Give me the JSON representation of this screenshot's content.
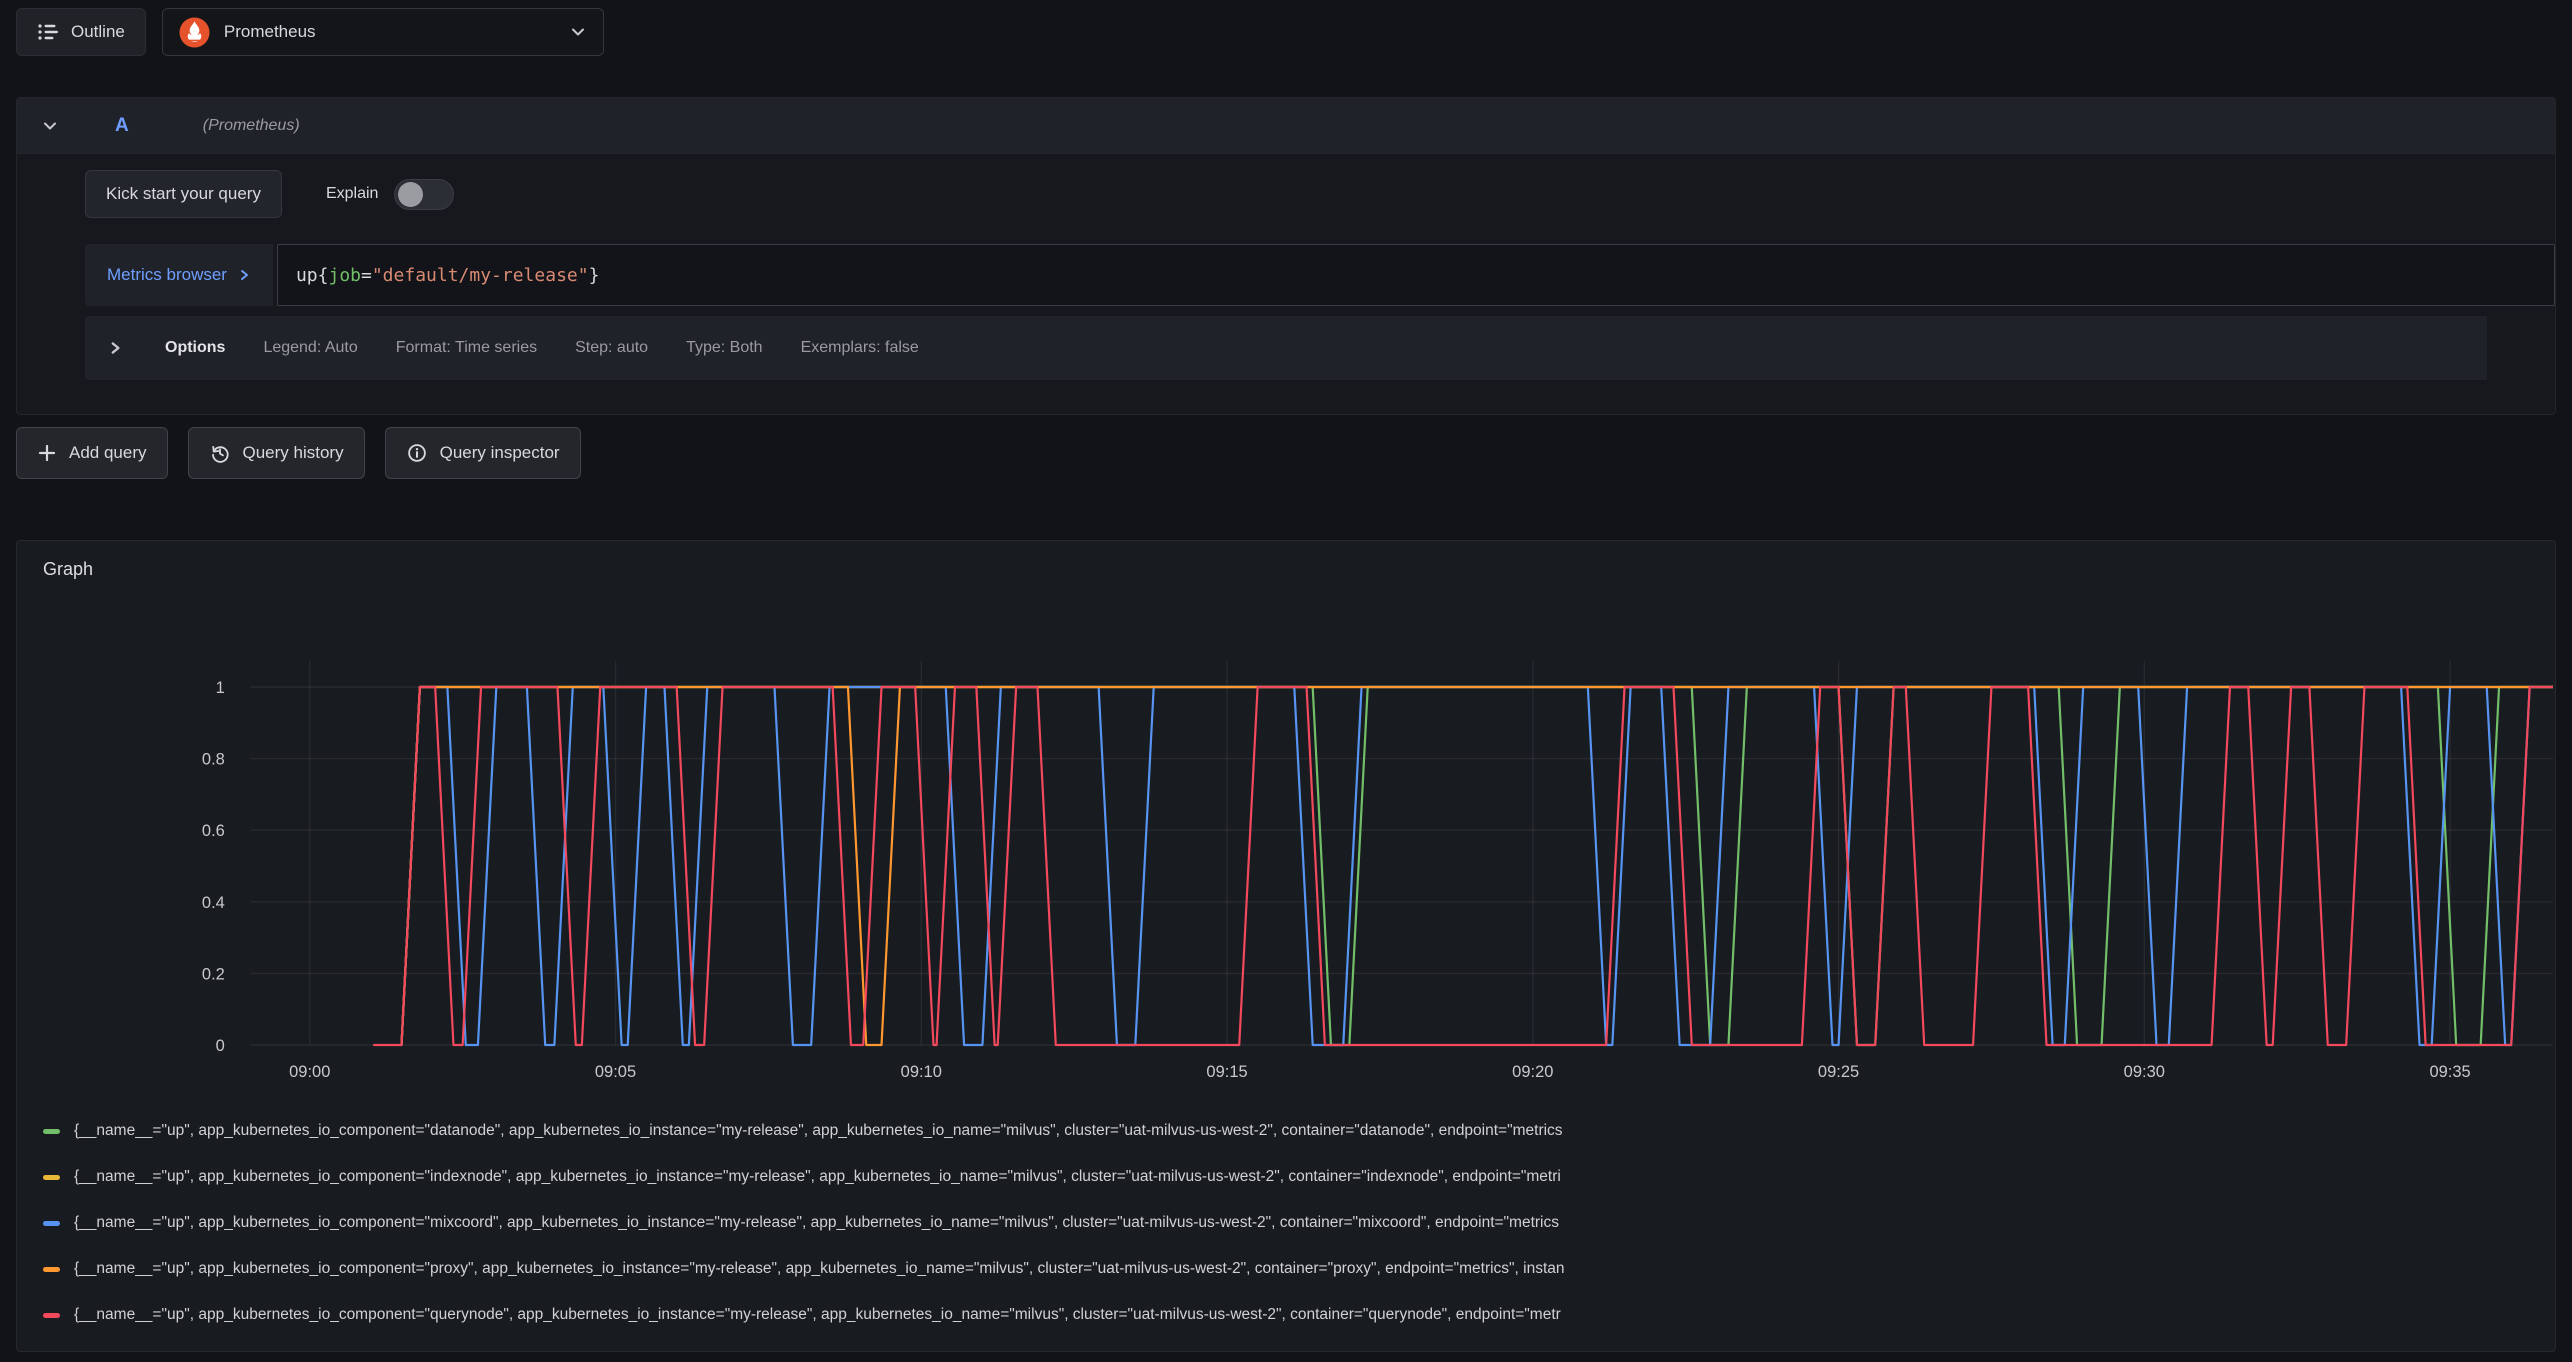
{
  "topbar": {
    "outline_label": "Outline",
    "datasource_picker": {
      "selected": "Prometheus"
    }
  },
  "query_editor": {
    "ref_id": "A",
    "datasource_hint": "(Prometheus)",
    "kick_start_label": "Kick start your query",
    "explain_label": "Explain",
    "explain_enabled": false,
    "metrics_browser_label": "Metrics browser",
    "query_text": "up{job=\"default/my-release\"}",
    "query_tokens": [
      {
        "t": "up{",
        "c": "plain"
      },
      {
        "t": "job",
        "c": "label"
      },
      {
        "t": "=",
        "c": "plain"
      },
      {
        "t": "\"default/my-release\"",
        "c": "string"
      },
      {
        "t": "}",
        "c": "plain"
      }
    ],
    "options_label": "Options",
    "options_summary": [
      "Legend: Auto",
      "Format: Time series",
      "Step: auto",
      "Type: Both",
      "Exemplars: false"
    ]
  },
  "actions": {
    "add_query": "Add query",
    "query_history": "Query history",
    "query_inspector": "Query inspector"
  },
  "graph_panel": {
    "title": "Graph"
  },
  "colors": {
    "accent_blue": "#6e9fff",
    "syntax_plain": "#d8d9da",
    "syntax_label": "#73bf69",
    "syntax_string": "#d98a73",
    "grid": "rgba(240,245,255,0.07)",
    "tick_text": "#c8c9cf"
  },
  "chart_data": {
    "type": "line",
    "title": "Graph",
    "xlabel": "",
    "ylabel": "",
    "x_unit": "time (HH:MM)",
    "x_axis": {
      "tick_labels": [
        "09:00",
        "09:05",
        "09:10",
        "09:15",
        "09:20",
        "09:25",
        "09:30",
        "09:35"
      ],
      "tick_minutes": [
        0,
        5,
        10,
        15,
        20,
        25,
        30,
        35
      ],
      "range_minutes": [
        -0.96,
        36.8
      ]
    },
    "y_axis": {
      "tick_labels": [
        "0",
        "0.2",
        "0.4",
        "0.6",
        "0.8",
        "1"
      ],
      "tick_values": [
        0,
        0.2,
        0.4,
        0.6,
        0.8,
        1
      ],
      "range": [
        0,
        1
      ]
    },
    "grid": true,
    "legend_position": "bottom",
    "note": "binary up(1)/down(0) step series, times in minutes after 09:00",
    "series": [
      {
        "name": "datanode",
        "color": "#73bf69",
        "legend_label": "{__name__=\"up\", app_kubernetes_io_component=\"datanode\", app_kubernetes_io_instance=\"my-release\", app_kubernetes_io_name=\"milvus\", cluster=\"uat-milvus-us-west-2\", container=\"datanode\", endpoint=\"metrics",
        "points": [
          [
            1.5,
            0
          ],
          [
            1.8,
            1
          ],
          [
            16.4,
            1
          ],
          [
            16.7,
            0
          ],
          [
            17.0,
            0
          ],
          [
            17.3,
            1
          ],
          [
            22.6,
            1
          ],
          [
            22.9,
            0
          ],
          [
            23.2,
            0
          ],
          [
            23.5,
            1
          ],
          [
            25.0,
            1
          ],
          [
            25.3,
            0
          ],
          [
            25.6,
            0
          ],
          [
            25.9,
            1
          ],
          [
            28.6,
            1
          ],
          [
            28.9,
            0
          ],
          [
            29.3,
            0
          ],
          [
            29.6,
            1
          ],
          [
            34.8,
            1
          ],
          [
            35.1,
            0
          ],
          [
            35.5,
            0
          ],
          [
            35.8,
            1
          ],
          [
            36.8,
            1
          ]
        ]
      },
      {
        "name": "indexnode",
        "color": "#eab839",
        "legend_label": "{__name__=\"up\", app_kubernetes_io_component=\"indexnode\", app_kubernetes_io_instance=\"my-release\", app_kubernetes_io_name=\"milvus\", cluster=\"uat-milvus-us-west-2\", container=\"indexnode\", endpoint=\"metri",
        "points": [
          [
            1.5,
            0
          ],
          [
            1.8,
            1
          ],
          [
            36.8,
            1
          ]
        ]
      },
      {
        "name": "mixcoord",
        "color": "#5794f2",
        "legend_label": "{__name__=\"up\", app_kubernetes_io_component=\"mixcoord\", app_kubernetes_io_instance=\"my-release\", app_kubernetes_io_name=\"milvus\", cluster=\"uat-milvus-us-west-2\", container=\"mixcoord\", endpoint=\"metrics",
        "points": [
          [
            1.5,
            0
          ],
          [
            1.8,
            1
          ],
          [
            2.25,
            1
          ],
          [
            2.55,
            0
          ],
          [
            2.75,
            0
          ],
          [
            3.05,
            1
          ],
          [
            3.55,
            1
          ],
          [
            3.85,
            0
          ],
          [
            4.0,
            0
          ],
          [
            4.3,
            1
          ],
          [
            4.8,
            1
          ],
          [
            5.1,
            0
          ],
          [
            5.2,
            0
          ],
          [
            5.5,
            1
          ],
          [
            5.8,
            1
          ],
          [
            6.1,
            0
          ],
          [
            6.2,
            0
          ],
          [
            6.5,
            1
          ],
          [
            7.6,
            1
          ],
          [
            7.9,
            0
          ],
          [
            8.2,
            0
          ],
          [
            8.5,
            1
          ],
          [
            10.4,
            1
          ],
          [
            10.7,
            0
          ],
          [
            11.0,
            0
          ],
          [
            11.3,
            1
          ],
          [
            12.9,
            1
          ],
          [
            13.2,
            0
          ],
          [
            13.5,
            0
          ],
          [
            13.8,
            1
          ],
          [
            16.1,
            1
          ],
          [
            16.4,
            0
          ],
          [
            16.9,
            0
          ],
          [
            17.2,
            1
          ],
          [
            20.9,
            1
          ],
          [
            21.2,
            0
          ],
          [
            21.3,
            0
          ],
          [
            21.6,
            1
          ],
          [
            22.1,
            1
          ],
          [
            22.4,
            0
          ],
          [
            22.9,
            0
          ],
          [
            23.2,
            1
          ],
          [
            24.6,
            1
          ],
          [
            24.9,
            0
          ],
          [
            25.0,
            0
          ],
          [
            25.3,
            1
          ],
          [
            28.2,
            1
          ],
          [
            28.5,
            0
          ],
          [
            28.7,
            0
          ],
          [
            29.0,
            1
          ],
          [
            29.9,
            1
          ],
          [
            30.2,
            0
          ],
          [
            30.4,
            0
          ],
          [
            30.7,
            1
          ],
          [
            34.2,
            1
          ],
          [
            34.5,
            0
          ],
          [
            34.7,
            0
          ],
          [
            35.0,
            1
          ],
          [
            35.6,
            1
          ],
          [
            35.9,
            0
          ],
          [
            36.0,
            0
          ],
          [
            36.3,
            1
          ],
          [
            36.8,
            1
          ]
        ]
      },
      {
        "name": "proxy",
        "color": "#ff9830",
        "legend_label": "{__name__=\"up\", app_kubernetes_io_component=\"proxy\", app_kubernetes_io_instance=\"my-release\", app_kubernetes_io_name=\"milvus\", cluster=\"uat-milvus-us-west-2\", container=\"proxy\", endpoint=\"metrics\", instan",
        "points": [
          [
            1.5,
            0
          ],
          [
            1.8,
            1
          ],
          [
            8.8,
            1
          ],
          [
            9.1,
            0
          ],
          [
            9.35,
            0
          ],
          [
            9.65,
            1
          ],
          [
            36.8,
            1
          ]
        ]
      },
      {
        "name": "querynode",
        "color": "#f2495c",
        "legend_label": "{__name__=\"up\", app_kubernetes_io_component=\"querynode\", app_kubernetes_io_instance=\"my-release\", app_kubernetes_io_name=\"milvus\", cluster=\"uat-milvus-us-west-2\", container=\"querynode\", endpoint=\"metr",
        "points": [
          [
            1.05,
            0
          ],
          [
            1.5,
            0
          ],
          [
            1.8,
            1
          ],
          [
            2.05,
            1
          ],
          [
            2.35,
            0
          ],
          [
            2.5,
            0
          ],
          [
            2.8,
            1
          ],
          [
            4.05,
            1
          ],
          [
            4.35,
            0
          ],
          [
            4.45,
            0
          ],
          [
            4.75,
            1
          ],
          [
            6.0,
            1
          ],
          [
            6.3,
            0
          ],
          [
            6.45,
            0
          ],
          [
            6.75,
            1
          ],
          [
            8.55,
            1
          ],
          [
            8.85,
            0
          ],
          [
            9.05,
            0
          ],
          [
            9.35,
            1
          ],
          [
            9.9,
            1
          ],
          [
            10.2,
            0
          ],
          [
            10.25,
            0
          ],
          [
            10.55,
            1
          ],
          [
            10.9,
            1
          ],
          [
            11.2,
            0
          ],
          [
            11.25,
            0
          ],
          [
            11.55,
            1
          ],
          [
            11.9,
            1
          ],
          [
            12.2,
            0
          ],
          [
            15.2,
            0
          ],
          [
            15.5,
            1
          ],
          [
            16.3,
            1
          ],
          [
            16.6,
            0
          ],
          [
            21.2,
            0
          ],
          [
            21.5,
            1
          ],
          [
            22.3,
            1
          ],
          [
            22.6,
            0
          ],
          [
            24.4,
            0
          ],
          [
            24.7,
            1
          ],
          [
            25.0,
            1
          ],
          [
            25.3,
            0
          ],
          [
            25.6,
            0
          ],
          [
            25.9,
            1
          ],
          [
            26.1,
            1
          ],
          [
            26.4,
            0
          ],
          [
            27.2,
            0
          ],
          [
            27.5,
            1
          ],
          [
            28.1,
            1
          ],
          [
            28.4,
            0
          ],
          [
            31.1,
            0
          ],
          [
            31.4,
            1
          ],
          [
            31.7,
            1
          ],
          [
            32.0,
            0
          ],
          [
            32.1,
            0
          ],
          [
            32.4,
            1
          ],
          [
            32.7,
            1
          ],
          [
            33.0,
            0
          ],
          [
            33.3,
            0
          ],
          [
            33.6,
            1
          ],
          [
            34.3,
            1
          ],
          [
            34.6,
            0
          ],
          [
            36.0,
            0
          ],
          [
            36.3,
            1
          ],
          [
            36.8,
            1
          ]
        ]
      }
    ]
  }
}
